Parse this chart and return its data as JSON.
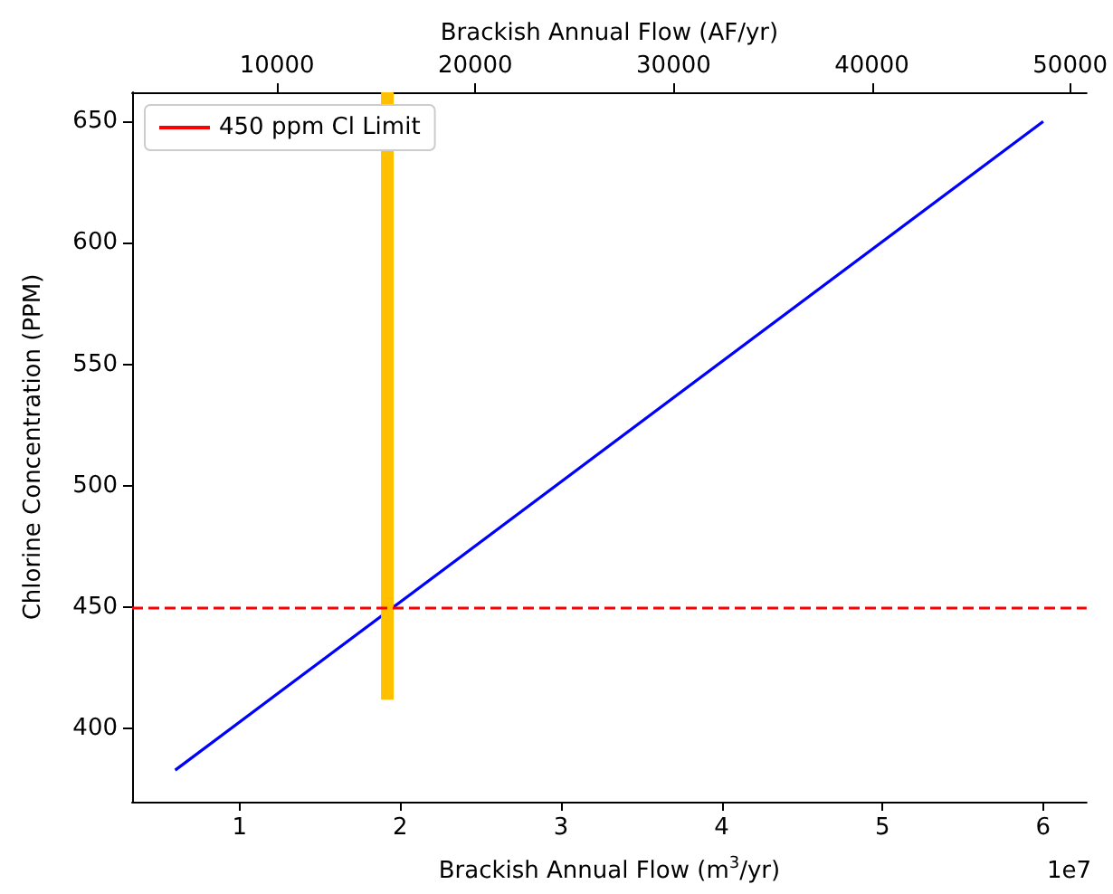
{
  "chart_data": {
    "type": "line",
    "xlabel": "Brackish Annual Flow (m$^{3}$/yr)",
    "ylabel": "Chlorine Concentration (PPM)",
    "x2label": "Brackish Annual Flow (AF/yr)",
    "series": [
      {
        "color": "#0000ff",
        "x": [
          0.6,
          6.0
        ],
        "values": [
          383,
          650
        ]
      },
      {
        "color": "#ffc000",
        "x": [
          1.92,
          1.92
        ],
        "values": [
          412,
          662
        ]
      }
    ],
    "ref_lines": [
      {
        "axis": "y",
        "value": 450,
        "label": "450 ppm Cl Limit",
        "color": "#ff0000",
        "line_style": "dashed"
      }
    ],
    "xlim": [
      0.332,
      6.27
    ],
    "xticks": [
      1,
      2,
      3,
      4,
      5,
      6
    ],
    "x2lim": [
      2690,
      50830
    ],
    "x2ticks": [
      10000,
      20000,
      30000,
      40000,
      50000
    ],
    "ylim": [
      370,
      662
    ],
    "yticks": [
      400,
      450,
      500,
      550,
      600,
      650
    ],
    "annotations": [
      "1e7"
    ],
    "legend": "top left",
    "grid": false,
    "marker": "none"
  }
}
